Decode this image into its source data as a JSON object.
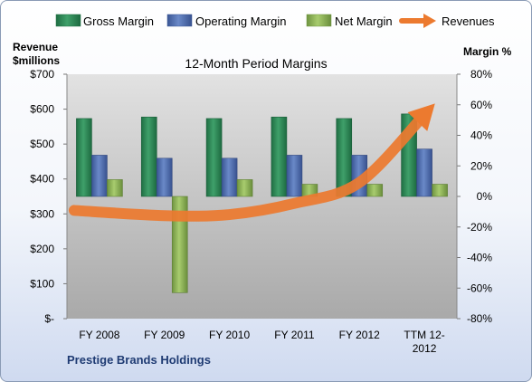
{
  "chart_data": {
    "type": "bar",
    "title": "12-Month Period Margins",
    "subtitle_company": "Prestige Brands Holdings",
    "left_axis_label_line1": "Revenue",
    "left_axis_label_line2": "$millions",
    "right_axis_label": "Margin %",
    "categories": [
      "FY 2008",
      "FY 2009",
      "FY 2010",
      "FY 2011",
      "FY 2012",
      "TTM 12-2012"
    ],
    "category_label_lines": [
      [
        "FY 2008"
      ],
      [
        "FY 2009"
      ],
      [
        "FY 2010"
      ],
      [
        "FY 2011"
      ],
      [
        "FY 2012"
      ],
      [
        "TTM 12-",
        "2012"
      ]
    ],
    "left_axis": {
      "min": 0,
      "max": 700,
      "ticks": [
        0,
        100,
        200,
        300,
        400,
        500,
        600,
        700
      ],
      "tick_labels": [
        "$-",
        "$100",
        "$200",
        "$300",
        "$400",
        "$500",
        "$600",
        "$700"
      ]
    },
    "right_axis": {
      "min": -80,
      "max": 80,
      "ticks": [
        -80,
        -60,
        -40,
        -20,
        0,
        20,
        40,
        60,
        80
      ],
      "tick_labels": [
        "-80%",
        "-60%",
        "-40%",
        "-20%",
        "0%",
        "20%",
        "40%",
        "60%",
        "80%"
      ]
    },
    "series": [
      {
        "name": "Gross Margin",
        "axis": "right",
        "kind": "bar",
        "color": "#2e8b57",
        "values": [
          51,
          52,
          51,
          52,
          51,
          54
        ]
      },
      {
        "name": "Operating Margin",
        "axis": "right",
        "kind": "bar",
        "color": "#4f6fb8",
        "values": [
          27,
          25,
          25,
          27,
          27,
          31
        ]
      },
      {
        "name": "Net Margin",
        "axis": "right",
        "kind": "bar",
        "color": "#8db356",
        "values": [
          11,
          -63,
          11,
          8,
          8,
          8
        ]
      },
      {
        "name": "Revenues",
        "axis": "left",
        "kind": "arrow-line",
        "color": "#ec7a2f",
        "values": [
          310,
          295,
          298,
          330,
          390,
          590
        ]
      }
    ],
    "legend_position": "top",
    "grid": false
  }
}
